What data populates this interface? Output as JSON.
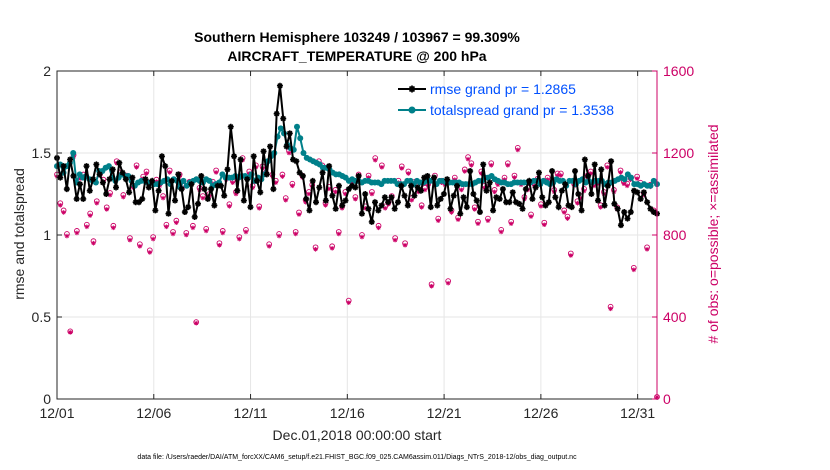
{
  "chart_data": {
    "type": "line",
    "title": "Southern Hemisphere 103249 / 103967 = 99.309%",
    "subtitle": "AIRCRAFT_TEMPERATURE @ 200 hPa",
    "xlabel": "Dec.01,2018 00:00:00 start",
    "ylabel": "rmse and totalspread",
    "y2label": "# of obs: o=possible; ×=assimilated",
    "footnote": "data file: /Users/raeder/DAI/ATM_forcXX/CAM6_setup/f.e21.FHIST_BGC.f09_025.CAM6assim.011/Diags_NTrS_2018-12/obs_diag_output.nc",
    "xlim": [
      0,
      31
    ],
    "ylim": [
      0,
      2
    ],
    "y2lim": [
      0,
      1600
    ],
    "x_ticks": [
      {
        "v": 0,
        "label": "12/01"
      },
      {
        "v": 5,
        "label": "12/06"
      },
      {
        "v": 10,
        "label": "12/11"
      },
      {
        "v": 15,
        "label": "12/16"
      },
      {
        "v": 20,
        "label": "12/21"
      },
      {
        "v": 25,
        "label": "12/26"
      },
      {
        "v": 30,
        "label": "12/31"
      }
    ],
    "y_ticks": [
      {
        "v": 0,
        "label": "0"
      },
      {
        "v": 0.5,
        "label": "0.5"
      },
      {
        "v": 1,
        "label": "1"
      },
      {
        "v": 1.5,
        "label": "1.5"
      },
      {
        "v": 2,
        "label": "2"
      }
    ],
    "y2_ticks": [
      {
        "v": 0,
        "label": "0"
      },
      {
        "v": 400,
        "label": "400"
      },
      {
        "v": 800,
        "label": "800"
      },
      {
        "v": 1200,
        "label": "1200"
      },
      {
        "v": 1600,
        "label": "1600"
      }
    ],
    "grid": true,
    "legend_position": "top-right",
    "colors": {
      "rmse": "#000000",
      "spread": "#00808a",
      "obs": "#cc0066",
      "legend_text": "#0050ff",
      "axis": "#262626"
    },
    "series": [
      {
        "name": "rmse grand pr = 1.2865",
        "axis": "left",
        "marker": "star",
        "values": [
          1.47,
          1.35,
          1.42,
          1.28,
          1.46,
          1.36,
          1.22,
          1.31,
          1.22,
          1.42,
          1.27,
          1.34,
          1.43,
          1.37,
          1.32,
          1.25,
          1.34,
          1.4,
          1.29,
          1.44,
          1.38,
          1.34,
          1.26,
          1.35,
          1.2,
          1.2,
          1.22,
          1.34,
          1.29,
          1.33,
          1.15,
          1.27,
          1.48,
          1.42,
          1.13,
          1.33,
          1.21,
          1.37,
          1.28,
          1.14,
          1.17,
          1.31,
          1.11,
          1.19,
          1.36,
          1.28,
          1.22,
          1.28,
          1.18,
          1.3,
          1.3,
          1.24,
          1.4,
          1.66,
          1.48,
          1.27,
          1.46,
          1.21,
          1.34,
          1.17,
          1.48,
          1.33,
          1.26,
          1.51,
          1.37,
          1.54,
          1.28,
          1.74,
          1.91,
          1.71,
          1.54,
          1.62,
          1.46,
          1.45,
          1.38,
          1.36,
          1.22,
          1.15,
          1.33,
          1.2,
          1.29,
          1.38,
          1.21,
          1.42,
          1.24,
          1.16,
          1.3,
          1.18,
          1.21,
          1.28,
          1.3,
          1.29,
          1.36,
          1.13,
          1.25,
          1.16,
          1.08,
          1.2,
          1.15,
          1.18,
          1.23,
          1.2,
          1.23,
          1.16,
          1.2,
          1.3,
          1.24,
          1.18,
          1.3,
          1.24,
          1.29,
          1.27,
          1.35,
          1.36,
          1.17,
          1.35,
          1.18,
          1.22,
          1.25,
          1.34,
          1.16,
          1.24,
          1.3,
          1.13,
          1.23,
          1.17,
          1.39,
          1.25,
          1.21,
          1.14,
          1.43,
          1.27,
          1.32,
          1.15,
          1.23,
          1.22,
          1.28,
          1.2,
          1.2,
          1.26,
          1.2,
          1.19,
          1.16,
          1.28,
          1.33,
          1.22,
          1.29,
          1.38,
          1.23,
          1.18,
          1.2,
          1.39,
          1.23,
          1.17,
          1.27,
          1.31,
          1.18,
          1.17,
          1.39,
          1.25,
          1.15,
          1.46,
          1.36,
          1.25,
          1.43,
          1.21,
          1.4,
          1.18,
          1.3,
          1.45,
          1.19,
          1.16,
          1.06,
          1.14,
          1.1,
          1.14,
          1.27,
          1.26,
          1.22,
          1.26,
          1.2,
          1.16,
          1.14,
          1.13
        ]
      },
      {
        "name": "totalspread grand pr = 1.3538",
        "axis": "left",
        "marker": "circle",
        "values": [
          1.42,
          1.43,
          1.38,
          1.42,
          1.44,
          1.5,
          1.32,
          1.37,
          1.35,
          1.36,
          1.34,
          1.33,
          1.32,
          1.39,
          1.39,
          1.41,
          1.42,
          1.35,
          1.33,
          1.35,
          1.37,
          1.36,
          1.36,
          1.33,
          1.3,
          1.32,
          1.33,
          1.33,
          1.32,
          1.32,
          1.31,
          1.31,
          1.32,
          1.33,
          1.34,
          1.31,
          1.34,
          1.33,
          1.29,
          1.33,
          1.3,
          1.32,
          1.33,
          1.34,
          1.33,
          1.32,
          1.34,
          1.33,
          1.3,
          1.31,
          1.32,
          1.37,
          1.35,
          1.35,
          1.35,
          1.36,
          1.35,
          1.36,
          1.36,
          1.35,
          1.37,
          1.33,
          1.35,
          1.34,
          1.37,
          1.45,
          1.48,
          1.5,
          1.6,
          1.65,
          1.62,
          1.55,
          1.53,
          1.52,
          1.66,
          1.59,
          1.5,
          1.47,
          1.46,
          1.45,
          1.44,
          1.43,
          1.41,
          1.41,
          1.4,
          1.38,
          1.37,
          1.37,
          1.36,
          1.35,
          1.33,
          1.34,
          1.33,
          1.33,
          1.32,
          1.33,
          1.33,
          1.32,
          1.32,
          1.32,
          1.31,
          1.33,
          1.33,
          1.33,
          1.33,
          1.31,
          1.31,
          1.31,
          1.33,
          1.33,
          1.31,
          1.33,
          1.32,
          1.32,
          1.33,
          1.33,
          1.33,
          1.31,
          1.33,
          1.33,
          1.32,
          1.32,
          1.32,
          1.32,
          1.32,
          1.31,
          1.31,
          1.31,
          1.31,
          1.32,
          1.33,
          1.33,
          1.35,
          1.35,
          1.36,
          1.34,
          1.33,
          1.32,
          1.32,
          1.31,
          1.31,
          1.32,
          1.32,
          1.32,
          1.32,
          1.32,
          1.32,
          1.33,
          1.33,
          1.31,
          1.33,
          1.32,
          1.31,
          1.32,
          1.34,
          1.33,
          1.33,
          1.3,
          1.33,
          1.33,
          1.31,
          1.33,
          1.34,
          1.32,
          1.33,
          1.32,
          1.33,
          1.33,
          1.33,
          1.31,
          1.32,
          1.32,
          1.33,
          1.34,
          1.35,
          1.34,
          1.37,
          1.35,
          1.31,
          1.31,
          1.3,
          1.31,
          1.3,
          1.3,
          1.33,
          1.31
        ]
      },
      {
        "name": "obs possible",
        "axis": "right",
        "marker": "circle-open",
        "values": [
          1095,
          955,
          920,
          805,
          330,
          1190,
          820,
          1085,
          1095,
          850,
          905,
          770,
          965,
          1100,
          1070,
          935,
          1005,
          845,
          1160,
          1105,
          995,
          1090,
          785,
          1040,
          1140,
          755,
          1085,
          1110,
          725,
          790,
          1070,
          1050,
          990,
          850,
          1115,
          815,
          870,
          1095,
          1040,
          810,
          1060,
          845,
          375,
          1030,
          990,
          830,
          1000,
          1060,
          1115,
          760,
          820,
          1080,
          950,
          1065,
          1010,
          790,
          1175,
          825,
          1110,
          1040,
          1140,
          940,
          1135,
          1105,
          755,
          1095,
          1065,
          805,
          1095,
          980,
          1210,
          1050,
          815,
          910,
          1090,
          970,
          1010,
          1045,
          740,
          1160,
          1140,
          955,
          1035,
          745,
          1020,
          815,
          940,
          1010,
          480,
          1065,
          985,
          1095,
          800,
          940,
          1090,
          1010,
          1175,
          845,
          1140,
          940,
          960,
          990,
          785,
          1065,
          1135,
          760,
          1110,
          980,
          1060,
          1020,
          945,
          1030,
          1050,
          560,
          1090,
          880,
          1065,
          1055,
          575,
          920,
          1080,
          885,
          1030,
          1120,
          1180,
          1150,
          935,
          865,
          1110,
          1040,
          880,
          1150,
          1020,
          1055,
          825,
          1080,
          1150,
          865,
          1090,
          1225,
          1055,
          985,
          1030,
          900,
          1050,
          1075,
          950,
          860,
          1080,
          1055,
          1020,
          1100,
          1100,
          920,
          890,
          710,
          1050,
          965,
          990,
          1025,
          1090,
          1110,
          1050,
          1060,
          945,
          1010,
          1140,
          450,
          1020,
          935,
          1115,
          1060,
          1050,
          1080,
          640,
          1085,
          1055,
          1005,
          740,
          1045,
          920,
          10
        ]
      },
      {
        "name": "obs assimilated",
        "axis": "right",
        "marker": "star",
        "values": [
          1085,
          945,
          910,
          795,
          325,
          1180,
          810,
          1075,
          1085,
          840,
          895,
          760,
          955,
          1090,
          1060,
          925,
          995,
          835,
          1150,
          1095,
          985,
          1080,
          775,
          1030,
          1130,
          745,
          1075,
          1100,
          715,
          780,
          1060,
          1040,
          980,
          840,
          1105,
          805,
          860,
          1085,
          1030,
          800,
          1050,
          835,
          370,
          1020,
          980,
          820,
          990,
          1050,
          1105,
          750,
          810,
          1070,
          940,
          1055,
          1000,
          780,
          1165,
          815,
          1100,
          1030,
          1130,
          930,
          1125,
          1095,
          745,
          1085,
          1055,
          795,
          1085,
          970,
          1200,
          1040,
          805,
          900,
          1080,
          960,
          1000,
          1035,
          730,
          1150,
          1130,
          945,
          1025,
          735,
          1010,
          805,
          930,
          1000,
          470,
          1055,
          975,
          1085,
          790,
          930,
          1080,
          1000,
          1165,
          835,
          1130,
          930,
          950,
          980,
          775,
          1055,
          1125,
          750,
          1100,
          970,
          1050,
          1010,
          935,
          1020,
          1040,
          550,
          1080,
          870,
          1055,
          1045,
          565,
          910,
          1070,
          875,
          1020,
          1110,
          1170,
          1140,
          925,
          855,
          1100,
          1030,
          870,
          1140,
          1010,
          1045,
          815,
          1070,
          1140,
          855,
          1080,
          1215,
          1045,
          975,
          1020,
          890,
          1040,
          1065,
          940,
          850,
          1070,
          1045,
          1010,
          1090,
          1090,
          910,
          880,
          700,
          1040,
          955,
          980,
          1015,
          1080,
          1100,
          1040,
          1050,
          935,
          1000,
          1130,
          440,
          1010,
          925,
          1105,
          1050,
          1040,
          1070,
          630,
          1075,
          1045,
          995,
          730,
          1035,
          910,
          8
        ]
      }
    ]
  }
}
